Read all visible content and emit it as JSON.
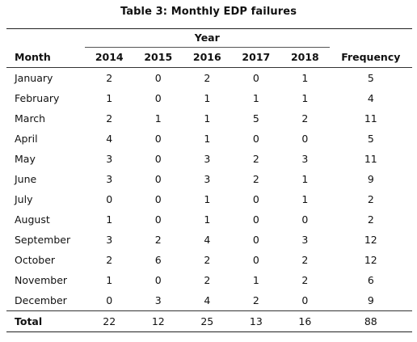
{
  "caption": "Table 3: Monthly EDP failures",
  "table": {
    "group_header": "Year",
    "columns": [
      "Month",
      "2014",
      "2015",
      "2016",
      "2017",
      "2018",
      "Frequency"
    ],
    "rows": [
      [
        "January",
        "2",
        "0",
        "2",
        "0",
        "1",
        "5"
      ],
      [
        "February",
        "1",
        "0",
        "1",
        "1",
        "1",
        "4"
      ],
      [
        "March",
        "2",
        "1",
        "1",
        "5",
        "2",
        "11"
      ],
      [
        "April",
        "4",
        "0",
        "1",
        "0",
        "0",
        "5"
      ],
      [
        "May",
        "3",
        "0",
        "3",
        "2",
        "3",
        "11"
      ],
      [
        "June",
        "3",
        "0",
        "3",
        "2",
        "1",
        "9"
      ],
      [
        "July",
        "0",
        "0",
        "1",
        "0",
        "1",
        "2"
      ],
      [
        "August",
        "1",
        "0",
        "1",
        "0",
        "0",
        "2"
      ],
      [
        "September",
        "3",
        "2",
        "4",
        "0",
        "3",
        "12"
      ],
      [
        "October",
        "2",
        "6",
        "2",
        "0",
        "2",
        "12"
      ],
      [
        "November",
        "1",
        "0",
        "2",
        "1",
        "2",
        "6"
      ],
      [
        "December",
        "0",
        "3",
        "4",
        "2",
        "0",
        "9"
      ]
    ],
    "total": [
      "Total",
      "22",
      "12",
      "25",
      "13",
      "16",
      "88"
    ]
  }
}
